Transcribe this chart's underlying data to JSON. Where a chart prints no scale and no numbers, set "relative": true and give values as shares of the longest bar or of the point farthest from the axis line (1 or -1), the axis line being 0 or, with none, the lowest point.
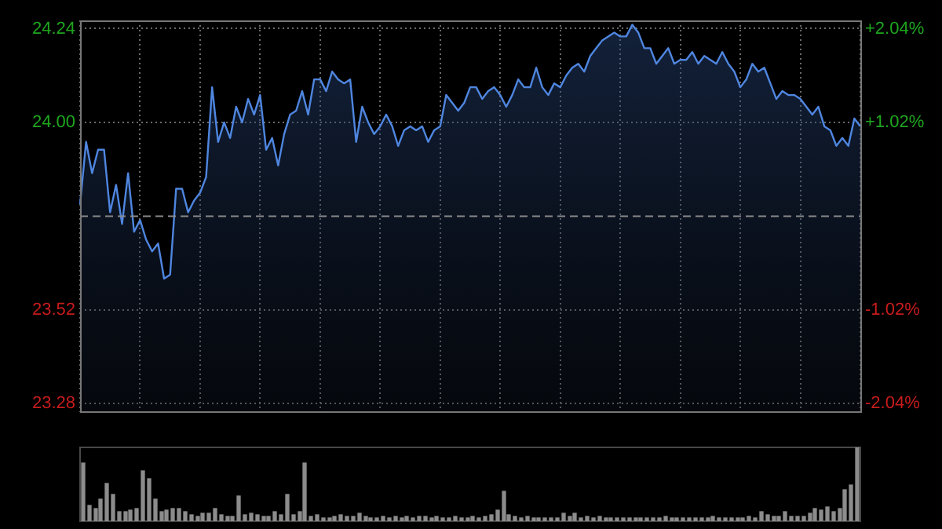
{
  "chart_data": [
    {
      "type": "area",
      "color": "#4f86e0",
      "categories": [
        null,
        null,
        null,
        null,
        null,
        null,
        null,
        null,
        null,
        null,
        null,
        null,
        null,
        null,
        null,
        null,
        null,
        null,
        null,
        null,
        null,
        null,
        null,
        null,
        null,
        null,
        null,
        null,
        null,
        null,
        null,
        null,
        null,
        null,
        null,
        null,
        null,
        null,
        null,
        null,
        null,
        null,
        null,
        null,
        null,
        null,
        null,
        null,
        null,
        null,
        null,
        null,
        null,
        null,
        null,
        null,
        null,
        null,
        null,
        null,
        null,
        null,
        null,
        null,
        null,
        null,
        null,
        null,
        null,
        null,
        null,
        null,
        null,
        null,
        null,
        null,
        null,
        null,
        null,
        null,
        null,
        null,
        null,
        null,
        null,
        null,
        null,
        null,
        null,
        null,
        null,
        null,
        null,
        null,
        null,
        null,
        null,
        null,
        null,
        null,
        null,
        null,
        null,
        null,
        null,
        null,
        null,
        null,
        null,
        null,
        null,
        null,
        null,
        null,
        null,
        null,
        null,
        null,
        null,
        null,
        null,
        null,
        null,
        null,
        null,
        null,
        null,
        null,
        null,
        null,
        null
      ],
      "values": [
        23.79,
        23.95,
        23.87,
        23.93,
        23.93,
        23.77,
        23.84,
        23.74,
        23.87,
        23.72,
        23.75,
        23.7,
        23.67,
        23.69,
        23.6,
        23.61,
        23.83,
        23.83,
        23.77,
        23.8,
        23.82,
        23.86,
        24.09,
        23.95,
        24.0,
        23.96,
        24.04,
        24.0,
        24.06,
        24.02,
        24.07,
        23.93,
        23.96,
        23.89,
        23.97,
        24.02,
        24.03,
        24.08,
        24.02,
        24.11,
        24.11,
        24.08,
        24.13,
        24.11,
        24.1,
        24.11,
        23.95,
        24.04,
        24.0,
        23.97,
        23.99,
        24.02,
        23.99,
        23.94,
        23.98,
        23.99,
        23.98,
        23.99,
        23.95,
        23.98,
        23.99,
        24.07,
        24.05,
        24.03,
        24.05,
        24.09,
        24.09,
        24.06,
        24.08,
        24.09,
        24.07,
        24.04,
        24.07,
        24.11,
        24.09,
        24.09,
        24.14,
        24.09,
        24.07,
        24.1,
        24.09,
        24.12,
        24.14,
        24.15,
        24.13,
        24.17,
        24.19,
        24.21,
        24.22,
        24.23,
        24.22,
        24.22,
        24.25,
        24.23,
        24.19,
        24.19,
        24.15,
        24.17,
        24.19,
        24.15,
        24.16,
        24.16,
        24.18,
        24.15,
        24.17,
        24.16,
        24.15,
        24.18,
        24.15,
        24.13,
        24.09,
        24.11,
        24.15,
        24.13,
        24.14,
        24.1,
        24.06,
        24.08,
        24.07,
        24.07,
        24.06,
        24.04,
        24.02,
        24.04,
        23.99,
        23.98,
        23.94,
        23.96,
        23.94,
        24.01,
        23.99
      ],
      "ylim": [
        23.259,
        24.261
      ],
      "yticks": [
        {
          "value": 23.28,
          "label": "23.28"
        },
        {
          "value": 23.52,
          "label": "23.52"
        },
        {
          "value": 24.0,
          "label": "24.00"
        },
        {
          "value": 24.24,
          "label": "24.24"
        }
      ],
      "y2lim": [
        -2.13,
        2.13
      ],
      "y2ticks": [
        {
          "value": -2.04,
          "label": "-2.04%"
        },
        {
          "value": -1.02,
          "label": "-1.02%"
        },
        {
          "value": 1.02,
          "label": "+1.02%"
        },
        {
          "value": 2.04,
          "label": "+2.04%"
        }
      ],
      "ref_lines": [
        {
          "axis": "y",
          "value": 23.76,
          "color": "#8a8a8a",
          "line_style": "dashed"
        }
      ],
      "grid": true,
      "tick_labels": "y"
    },
    {
      "type": "bar",
      "color": "#8c8c8c",
      "relative": true,
      "tick_labels": false,
      "categories": [
        null,
        null,
        null,
        null,
        null,
        null,
        null,
        null,
        null,
        null,
        null,
        null,
        null,
        null,
        null,
        null,
        null,
        null,
        null,
        null,
        null,
        null,
        null,
        null,
        null,
        null,
        null,
        null,
        null,
        null,
        null,
        null,
        null,
        null,
        null,
        null,
        null,
        null,
        null,
        null,
        null,
        null,
        null,
        null,
        null,
        null,
        null,
        null,
        null,
        null,
        null,
        null,
        null,
        null,
        null,
        null,
        null,
        null,
        null,
        null,
        null,
        null,
        null,
        null,
        null,
        null,
        null,
        null,
        null,
        null,
        null,
        null,
        null,
        null,
        null,
        null,
        null,
        null,
        null,
        null,
        null,
        null,
        null,
        null,
        null,
        null,
        null,
        null,
        null,
        null,
        null,
        null,
        null,
        null,
        null,
        null,
        null,
        null,
        null,
        null,
        null,
        null,
        null,
        null,
        null,
        null,
        null,
        null,
        null,
        null,
        null,
        null,
        null,
        null,
        null,
        null,
        null,
        null,
        null,
        null,
        null,
        null,
        null,
        null,
        null,
        null,
        null,
        null,
        null,
        null
      ],
      "values": [
        0.79,
        0.21,
        0.18,
        0.3,
        0.51,
        0.36,
        0.12,
        0.12,
        0.14,
        0.16,
        0.68,
        0.57,
        0.3,
        0.12,
        0.14,
        0.16,
        0.16,
        0.12,
        0.08,
        0.06,
        0.1,
        0.1,
        0.16,
        0.08,
        0.06,
        0.06,
        0.33,
        0.08,
        0.1,
        0.09,
        0.06,
        0.06,
        0.12,
        0.08,
        0.36,
        0.08,
        0.12,
        0.79,
        0.06,
        0.08,
        0.05,
        0.05,
        0.06,
        0.08,
        0.06,
        0.06,
        0.1,
        0.06,
        0.05,
        0.05,
        0.06,
        0.05,
        0.06,
        0.05,
        0.06,
        0.05,
        0.07,
        0.06,
        0.05,
        0.06,
        0.04,
        0.05,
        0.06,
        0.04,
        0.05,
        0.06,
        0.05,
        0.06,
        0.08,
        0.15,
        0.41,
        0.08,
        0.06,
        0.05,
        0.06,
        0.05,
        0.04,
        0.05,
        0.05,
        0.05,
        0.1,
        0.06,
        0.1,
        0.05,
        0.06,
        0.05,
        0.06,
        0.04,
        0.05,
        0.04,
        0.05,
        0.05,
        0.04,
        0.04,
        0.05,
        0.04,
        0.05,
        0.06,
        0.05,
        0.04,
        0.05,
        0.05,
        0.04,
        0.05,
        0.04,
        0.06,
        0.04,
        0.05,
        0.04,
        0.05,
        0.04,
        0.06,
        0.05,
        0.12,
        0.08,
        0.06,
        0.06,
        0.12,
        0.06,
        0.07,
        0.06,
        0.1,
        0.18,
        0.15,
        0.2,
        0.13,
        0.16,
        0.43,
        0.49,
        1.0
      ]
    }
  ]
}
